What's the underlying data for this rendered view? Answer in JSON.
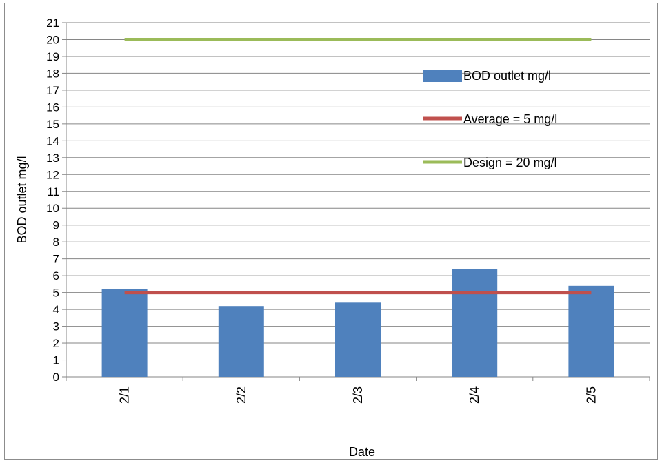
{
  "chart_data": {
    "type": "bar",
    "title": "",
    "xlabel": "Date",
    "ylabel": "BOD outlet mg/l",
    "categories": [
      "2/1",
      "2/2",
      "2/3",
      "2/4",
      "2/5"
    ],
    "series": [
      {
        "name": "BOD outlet mg/l",
        "type": "bar",
        "values": [
          5.2,
          4.2,
          4.4,
          6.4,
          5.4
        ],
        "color": "#4f81bd"
      },
      {
        "name": "Average = 5 mg/l",
        "type": "line",
        "values": [
          5,
          5,
          5,
          5,
          5
        ],
        "color": "#c0504d"
      },
      {
        "name": "Design = 20 mg/l",
        "type": "line",
        "values": [
          20,
          20,
          20,
          20,
          20
        ],
        "color": "#9bbb59"
      }
    ],
    "ylim": [
      0,
      21
    ],
    "ytick_step": 1,
    "grid": true,
    "legend_position": "top-right",
    "x_tick_rotation": "vertical"
  }
}
